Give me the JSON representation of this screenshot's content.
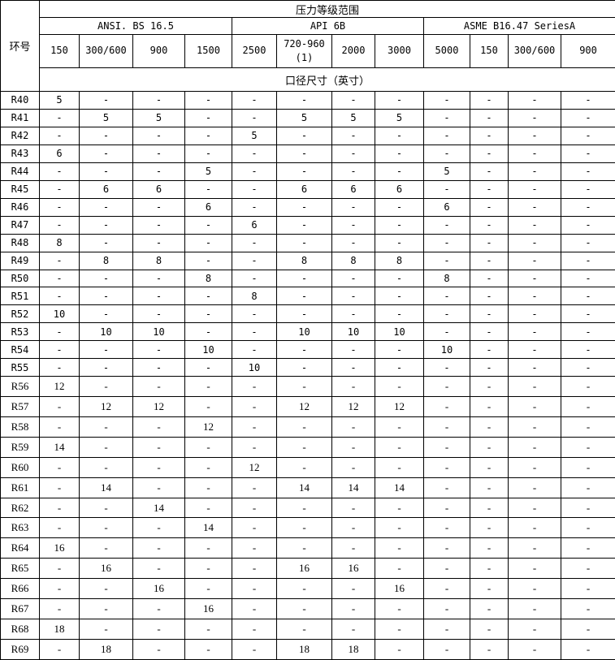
{
  "table": {
    "corner_header": "环号",
    "title": "压力等级范围",
    "subtitle": "口径尺寸（英寸）",
    "groups": [
      {
        "label": "ANSI. BS 16.5",
        "span": 4
      },
      {
        "label": "API 6B",
        "span": 4
      },
      {
        "label": "ASME B16.47 SeriesA",
        "span": 4
      }
    ],
    "class_headers": [
      "150",
      "300/600",
      "900",
      "1500",
      "2500",
      "720-960\n(1)",
      "2000",
      "3000",
      "5000",
      "150",
      "300/600",
      "900"
    ],
    "rows": [
      {
        "ring": "R40",
        "values": [
          "5",
          "-",
          "-",
          "-",
          "-",
          "-",
          "-",
          "-",
          "-",
          "-",
          "-",
          "-"
        ]
      },
      {
        "ring": "R41",
        "values": [
          "-",
          "5",
          "5",
          "-",
          "-",
          "5",
          "5",
          "5",
          "-",
          "-",
          "-",
          "-"
        ]
      },
      {
        "ring": "R42",
        "values": [
          "-",
          "-",
          "-",
          "-",
          "5",
          "-",
          "-",
          "-",
          "-",
          "-",
          "-",
          "-"
        ]
      },
      {
        "ring": "R43",
        "values": [
          "6",
          "-",
          "-",
          "-",
          "-",
          "-",
          "-",
          "-",
          "-",
          "-",
          "-",
          "-"
        ]
      },
      {
        "ring": "R44",
        "values": [
          "-",
          "-",
          "-",
          "5",
          "-",
          "-",
          "-",
          "-",
          "5",
          "-",
          "-",
          "-"
        ]
      },
      {
        "ring": "R45",
        "values": [
          "-",
          "6",
          "6",
          "-",
          "-",
          "6",
          "6",
          "6",
          "-",
          "-",
          "-",
          "-"
        ]
      },
      {
        "ring": "R46",
        "values": [
          "-",
          "-",
          "-",
          "6",
          "-",
          "-",
          "-",
          "-",
          "6",
          "-",
          "-",
          "-"
        ]
      },
      {
        "ring": "R47",
        "values": [
          "-",
          "-",
          "-",
          "-",
          "6",
          "-",
          "-",
          "-",
          "-",
          "-",
          "-",
          "-"
        ]
      },
      {
        "ring": "R48",
        "values": [
          "8",
          "-",
          "-",
          "-",
          "-",
          "-",
          "-",
          "-",
          "-",
          "-",
          "-",
          "-"
        ]
      },
      {
        "ring": "R49",
        "values": [
          "-",
          "8",
          "8",
          "-",
          "-",
          "8",
          "8",
          "8",
          "-",
          "-",
          "-",
          "-"
        ]
      },
      {
        "ring": "R50",
        "values": [
          "-",
          "-",
          "-",
          "8",
          "-",
          "-",
          "-",
          "-",
          "8",
          "-",
          "-",
          "-"
        ]
      },
      {
        "ring": "R51",
        "values": [
          "-",
          "-",
          "-",
          "-",
          "8",
          "-",
          "-",
          "-",
          "-",
          "-",
          "-",
          "-"
        ]
      },
      {
        "ring": "R52",
        "values": [
          "10",
          "-",
          "-",
          "-",
          "-",
          "-",
          "-",
          "-",
          "-",
          "-",
          "-",
          "-"
        ]
      },
      {
        "ring": "R53",
        "values": [
          "-",
          "10",
          "10",
          "-",
          "-",
          "10",
          "10",
          "10",
          "-",
          "-",
          "-",
          "-"
        ]
      },
      {
        "ring": "R54",
        "values": [
          "-",
          "-",
          "-",
          "10",
          "-",
          "-",
          "-",
          "-",
          "10",
          "-",
          "-",
          "-"
        ]
      },
      {
        "ring": "R55",
        "values": [
          "-",
          "-",
          "-",
          "-",
          "10",
          "-",
          "-",
          "-",
          "-",
          "-",
          "-",
          "-"
        ]
      },
      {
        "ring": "R56",
        "values": [
          "12",
          "-",
          "-",
          "-",
          "-",
          "-",
          "-",
          "-",
          "-",
          "-",
          "-",
          "-"
        ]
      },
      {
        "ring": "R57",
        "values": [
          "-",
          "12",
          "12",
          "-",
          "-",
          "12",
          "12",
          "12",
          "-",
          "-",
          "-",
          "-"
        ]
      },
      {
        "ring": "R58",
        "values": [
          "-",
          "-",
          "-",
          "12",
          "-",
          "-",
          "-",
          "-",
          "-",
          "-",
          "-",
          "-"
        ]
      },
      {
        "ring": "R59",
        "values": [
          "14",
          "-",
          "-",
          "-",
          "-",
          "-",
          "-",
          "-",
          "-",
          "-",
          "-",
          "-"
        ]
      },
      {
        "ring": "R60",
        "values": [
          "-",
          "-",
          "-",
          "-",
          "12",
          "-",
          "-",
          "-",
          "-",
          "-",
          "-",
          "-"
        ]
      },
      {
        "ring": "R61",
        "values": [
          "-",
          "14",
          "-",
          "-",
          "-",
          "14",
          "14",
          "14",
          "-",
          "-",
          "-",
          "-"
        ]
      },
      {
        "ring": "R62",
        "values": [
          "-",
          "-",
          "14",
          "-",
          "-",
          "-",
          "-",
          "-",
          "-",
          "-",
          "-",
          "-"
        ]
      },
      {
        "ring": "R63",
        "values": [
          "-",
          "-",
          "-",
          "14",
          "-",
          "-",
          "-",
          "-",
          "-",
          "-",
          "-",
          "-"
        ]
      },
      {
        "ring": "R64",
        "values": [
          "16",
          "-",
          "-",
          "-",
          "-",
          "-",
          "-",
          "-",
          "-",
          "-",
          "-",
          "-"
        ]
      },
      {
        "ring": "R65",
        "values": [
          "-",
          "16",
          "-",
          "-",
          "-",
          "16",
          "16",
          "-",
          "-",
          "-",
          "-",
          "-"
        ]
      },
      {
        "ring": "R66",
        "values": [
          "-",
          "-",
          "16",
          "-",
          "-",
          "-",
          "-",
          "16",
          "-",
          "-",
          "-",
          "-"
        ]
      },
      {
        "ring": "R67",
        "values": [
          "-",
          "-",
          "-",
          "16",
          "-",
          "-",
          "-",
          "-",
          "-",
          "-",
          "-",
          "-"
        ]
      },
      {
        "ring": "R68",
        "values": [
          "18",
          "-",
          "-",
          "-",
          "-",
          "-",
          "-",
          "-",
          "-",
          "-",
          "-",
          "-"
        ]
      },
      {
        "ring": "R69",
        "values": [
          "-",
          "18",
          "-",
          "-",
          "-",
          "18",
          "18",
          "-",
          "-",
          "-",
          "-",
          "-"
        ]
      }
    ],
    "colors": {
      "border": "#000000",
      "text": "#000000",
      "background": "#ffffff"
    }
  }
}
